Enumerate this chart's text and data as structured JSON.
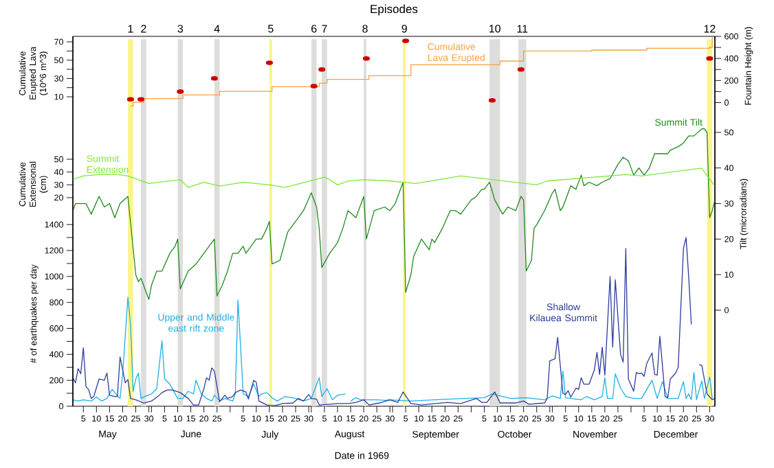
{
  "chart_data": [
    {
      "type": "line",
      "title": "Episodes",
      "xlabel": "Date in 1969",
      "ylabel": "# of earthquakes per day",
      "y2label": "Tilt (microradians)",
      "y3label": "Cumulative Extensional (cm)",
      "xlim": [
        "1969-05-01",
        "1970-01-01"
      ],
      "xticks": [
        {
          "value": "1969-05-05",
          "label": "5"
        },
        {
          "value": "1969-05-10",
          "label": "10"
        },
        {
          "value": "1969-05-15",
          "label": "15"
        },
        {
          "value": "1969-05-20",
          "label": "20"
        },
        {
          "value": "1969-05-25",
          "label": "25"
        },
        {
          "value": "1969-05-30",
          "label": "30"
        },
        {
          "value": "1969-05-31",
          "label": null
        },
        {
          "value": "1969-06-05",
          "label": "5"
        },
        {
          "value": "1969-06-10",
          "label": "10"
        },
        {
          "value": "1969-06-15",
          "label": "15"
        },
        {
          "value": "1969-06-20",
          "label": "20"
        },
        {
          "value": "1969-06-25",
          "label": "25"
        },
        {
          "value": "1969-06-30",
          "label": null
        },
        {
          "value": "1969-07-05",
          "label": "5"
        },
        {
          "value": "1969-07-10",
          "label": "10"
        },
        {
          "value": "1969-07-15",
          "label": "15"
        },
        {
          "value": "1969-07-20",
          "label": "20"
        },
        {
          "value": "1969-07-25",
          "label": "25"
        },
        {
          "value": "1969-07-30",
          "label": "30"
        },
        {
          "value": "1969-07-31",
          "label": null
        },
        {
          "value": "1969-08-05",
          "label": "5"
        },
        {
          "value": "1969-08-10",
          "label": "10"
        },
        {
          "value": "1969-08-15",
          "label": "15"
        },
        {
          "value": "1969-08-20",
          "label": "20"
        },
        {
          "value": "1969-08-25",
          "label": "25"
        },
        {
          "value": "1969-08-30",
          "label": "30"
        },
        {
          "value": "1969-08-31",
          "label": null
        },
        {
          "value": "1969-09-05",
          "label": "5"
        },
        {
          "value": "1969-09-10",
          "label": "10"
        },
        {
          "value": "1969-09-15",
          "label": "15"
        },
        {
          "value": "1969-09-20",
          "label": "20"
        },
        {
          "value": "1969-09-25",
          "label": "25"
        },
        {
          "value": "1969-09-30",
          "label": null
        },
        {
          "value": "1969-10-05",
          "label": "5"
        },
        {
          "value": "1969-10-10",
          "label": "10"
        },
        {
          "value": "1969-10-15",
          "label": "15"
        },
        {
          "value": "1969-10-20",
          "label": "20"
        },
        {
          "value": "1969-10-25",
          "label": "25"
        },
        {
          "value": "1969-10-30",
          "label": "30"
        },
        {
          "value": "1969-10-31",
          "label": null
        },
        {
          "value": "1969-11-05",
          "label": "5"
        },
        {
          "value": "1969-11-10",
          "label": "10"
        },
        {
          "value": "1969-11-15",
          "label": "15"
        },
        {
          "value": "1969-11-20",
          "label": "20"
        },
        {
          "value": "1969-11-25",
          "label": "25"
        },
        {
          "value": "1969-11-30",
          "label": null
        },
        {
          "value": "1969-12-05",
          "label": "5"
        },
        {
          "value": "1969-12-10",
          "label": "10"
        },
        {
          "value": "1969-12-15",
          "label": "15"
        },
        {
          "value": "1969-12-20",
          "label": "20"
        },
        {
          "value": "1969-12-25",
          "label": "25"
        },
        {
          "value": "1969-12-30",
          "label": "30"
        }
      ],
      "ylim": [
        0,
        2850
      ],
      "yticks": [
        0,
        {
          "value": 100,
          "label": null
        },
        200,
        {
          "value": 300,
          "label": null
        },
        400,
        {
          "value": 500,
          "label": null
        },
        600,
        {
          "value": 700,
          "label": null
        },
        800,
        {
          "value": 900,
          "label": null
        },
        1000,
        {
          "value": 1100,
          "label": null
        },
        1200,
        {
          "value": 1300,
          "label": null
        },
        1400
      ],
      "y2lim": [
        -27,
        77
      ],
      "y2ticks": [
        0,
        10,
        20,
        30,
        40,
        50
      ],
      "y3lim": [
        -143,
        146
      ],
      "y3ticks": [
        20,
        30,
        40,
        50
      ],
      "bands": [
        {
          "axis": "x",
          "from": "1969-05-22",
          "to": "1969-05-24",
          "label": "1",
          "color": "#fbf48c"
        },
        {
          "axis": "x",
          "from": "1969-05-27",
          "to": "1969-05-29",
          "label": "2",
          "color": "#dddddb"
        },
        {
          "axis": "x",
          "from": "1969-06-10",
          "to": "1969-06-12",
          "label": "3",
          "color": "#dddddb"
        },
        {
          "axis": "x",
          "from": "1969-06-24",
          "to": "1969-06-26",
          "label": "4",
          "color": "#dddddb"
        },
        {
          "axis": "x",
          "from": "1969-07-15",
          "to": "1969-07-16",
          "label": "5",
          "color": "#fbf48c"
        },
        {
          "axis": "x",
          "from": "1969-07-31",
          "to": "1969-08-02",
          "label": "6",
          "color": "#dddddb"
        },
        {
          "axis": "x",
          "from": "1969-08-04",
          "to": "1969-08-06",
          "label": "7",
          "color": "#dddddb"
        },
        {
          "axis": "x",
          "from": "1969-08-20",
          "to": "1969-08-21",
          "label": "8",
          "color": "#dddddb"
        },
        {
          "axis": "x",
          "from": "1969-09-04",
          "to": "1969-09-05",
          "label": "9",
          "color": "#fbf48c"
        },
        {
          "axis": "x",
          "from": "1969-10-07",
          "to": "1969-10-11",
          "label": "10",
          "color": "#dddddb"
        },
        {
          "axis": "x",
          "from": "1969-10-18",
          "to": "1969-10-21",
          "label": "11",
          "color": "#dddddb"
        },
        {
          "axis": "x",
          "from": "1969-12-29",
          "to": "1969-12-31",
          "label": "12",
          "color": "#fbf48c"
        }
      ],
      "annotations": [
        "May",
        "June",
        "July",
        "August",
        "September",
        "October",
        "November",
        "December"
      ],
      "series": [
        {
          "name": "Upper and Middle east rift zone",
          "color": "#1db0e8",
          "x": [
            "1969-05-01",
            "1969-05-03",
            "1969-05-05",
            "1969-05-08",
            "1969-05-10",
            "1969-05-12",
            "1969-05-14",
            "1969-05-16",
            "1969-05-18",
            "1969-05-19",
            "1969-05-20",
            "1969-05-22",
            "1969-05-23",
            "1969-05-24",
            "1969-05-25",
            "1969-05-26",
            "1969-05-27",
            "1969-05-29",
            "1969-05-31",
            "1969-06-02",
            "1969-06-04",
            "1969-06-05",
            "1969-06-07",
            "1969-06-10",
            "1969-06-12",
            "1969-06-14",
            "1969-06-16",
            "1969-06-17",
            "1969-06-19",
            "1969-06-21",
            "1969-06-23",
            "1969-06-24",
            "1969-06-26",
            "1969-06-28",
            "1969-07-01",
            "1969-07-02",
            "1969-07-03",
            "1969-07-05",
            "1969-07-07",
            "1969-07-09",
            "1969-07-11",
            "1969-07-12",
            "1969-07-14",
            "1969-07-16",
            "1969-07-18",
            "1969-07-21",
            "1969-07-25",
            "1969-07-28",
            "1969-07-31",
            "1969-08-01",
            "1969-08-03",
            "1969-08-04",
            "1969-08-06",
            "1969-08-08",
            "1969-08-10",
            "1969-08-13",
            "1969-08-14",
            "1969-08-15",
            "1969-08-17",
            "1969-08-19",
            "1969-08-23",
            "1969-08-25",
            "1969-08-28",
            "1969-08-30",
            "1969-09-07",
            "1969-09-16",
            "1969-09-27",
            "1969-10-05",
            "1969-10-08",
            "1969-10-15",
            "1969-10-21",
            "1969-10-28",
            "1969-10-31",
            "1969-11-03",
            "1969-11-04",
            "1969-11-05",
            "1969-11-11",
            "1969-11-13",
            "1969-11-16",
            "1969-11-19",
            "1969-11-20",
            "1969-11-21",
            "1969-11-23",
            "1969-11-24",
            "1969-11-26",
            "1969-11-28",
            "1969-12-01",
            "1969-12-04",
            "1969-12-08",
            "1969-12-10",
            "1969-12-12",
            "1969-12-14",
            "1969-12-18",
            "1969-12-20",
            "1969-12-21",
            "1969-12-22",
            "1969-12-23",
            "1969-12-24",
            "1969-12-25",
            "1969-12-27",
            "1969-12-28",
            "1969-12-30",
            "1969-12-31"
          ],
          "values": [
            50,
            40,
            50,
            40,
            70,
            40,
            60,
            130,
            80,
            60,
            250,
            840,
            630,
            115,
            210,
            255,
            60,
            80,
            95,
            135,
            505,
            210,
            170,
            60,
            60,
            115,
            95,
            200,
            95,
            60,
            40,
            85,
            40,
            60,
            40,
            95,
            820,
            95,
            75,
            170,
            75,
            95,
            105,
            65,
            40,
            75,
            60,
            40,
            60,
            115,
            220,
            75,
            135,
            50,
            85,
            95,
            null,
            40,
            65,
            50,
            50,
            50,
            45,
            50,
            40,
            50,
            60,
            65,
            95,
            60,
            65,
            50,
            80,
            60,
            270,
            65,
            50,
            75,
            50,
            75,
            220,
            60,
            60,
            250,
            140,
            75,
            60,
            60,
            200,
            60,
            190,
            60,
            60,
            190,
            60,
            95,
            50,
            260,
            50,
            195,
            60,
            225,
            60
          ]
        },
        {
          "name": "Shallow Kilauea Summit",
          "color": "#2d3c9e",
          "x": [
            "1969-05-01",
            "1969-05-02",
            "1969-05-03",
            "1969-05-04",
            "1969-05-05",
            "1969-05-06",
            "1969-05-07",
            "1969-05-08",
            "1969-05-09",
            "1969-05-11",
            "1969-05-13",
            "1969-05-14",
            "1969-05-15",
            "1969-05-17",
            "1969-05-18",
            "1969-05-19",
            "1969-05-21",
            "1969-05-22",
            "1969-05-23",
            "1969-05-25",
            "1969-05-28",
            "1969-05-31",
            "1969-06-03",
            "1969-06-04",
            "1969-06-06",
            "1969-06-08",
            "1969-06-11",
            "1969-06-14",
            "1969-06-16",
            "1969-06-18",
            "1969-06-20",
            "1969-06-21",
            "1969-06-22",
            "1969-06-23",
            "1969-06-24",
            "1969-06-26",
            "1969-06-28",
            "1969-06-29",
            "1969-07-01",
            "1969-07-02",
            "1969-07-04",
            "1969-07-06",
            "1969-07-07",
            "1969-07-09",
            "1969-07-10",
            "1969-07-11",
            "1969-07-14",
            "1969-07-17",
            "1969-07-20",
            "1969-07-24",
            "1969-07-26",
            "1969-07-28",
            "1969-07-30",
            "1969-07-31",
            "1969-08-02",
            "1969-08-03",
            "1969-08-07",
            "1969-08-10",
            "1969-08-14",
            "1969-08-17",
            "1969-08-20",
            "1969-08-22",
            "1969-08-26",
            "1969-08-30",
            "1969-09-02",
            "1969-09-04",
            "1969-09-07",
            "1969-09-11",
            "1969-09-21",
            "1969-09-26",
            "1969-10-02",
            "1969-10-04",
            "1969-10-06",
            "1969-10-09",
            "1969-10-11",
            "1969-10-17",
            "1969-10-20",
            "1969-10-22",
            "1969-10-28",
            "1969-10-29",
            "1969-10-30",
            "1969-11-01",
            "1969-11-02",
            "1969-11-04",
            "1969-11-05",
            "1969-11-06",
            "1969-11-07",
            "1969-11-09",
            "1969-11-10",
            "1969-11-11",
            "1969-11-12",
            "1969-11-14",
            "1969-11-16",
            "1969-11-17",
            "1969-11-18",
            "1969-11-19",
            "1969-11-20",
            "1969-11-22",
            "1969-11-23",
            "1969-11-24",
            "1969-11-26",
            "1969-11-27",
            "1969-11-28",
            "1969-11-29",
            "1969-12-01",
            "1969-12-02",
            "1969-12-03",
            "1969-12-04",
            "1969-12-05",
            "1969-12-06",
            "1969-12-08",
            "1969-12-09",
            "1969-12-10",
            "1969-12-11",
            "1969-12-13",
            "1969-12-14",
            "1969-12-15",
            "1969-12-17",
            "1969-12-18",
            "1969-12-20",
            "1969-12-21",
            "1969-12-22",
            "1969-12-23",
            "1969-12-24",
            "1969-12-26",
            "1969-12-27",
            "1969-12-29",
            "1969-12-31",
            "1970-01-01"
          ],
          "values": [
            220,
            180,
            290,
            250,
            450,
            150,
            130,
            60,
            75,
            210,
            200,
            255,
            85,
            75,
            75,
            380,
            180,
            205,
            60,
            50,
            25,
            40,
            85,
            105,
            125,
            125,
            105,
            60,
            10,
            10,
            135,
            220,
            200,
            295,
            270,
            35,
            85,
            60,
            75,
            105,
            125,
            110,
            55,
            200,
            185,
            40,
            10,
            5,
            20,
            25,
            60,
            40,
            90,
            60,
            55,
            10,
            15,
            20,
            20,
            30,
            50,
            10,
            25,
            50,
            30,
            110,
            20,
            10,
            30,
            20,
            60,
            30,
            30,
            110,
            25,
            25,
            40,
            15,
            25,
            60,
            350,
            365,
            530,
            100,
            90,
            120,
            70,
            140,
            130,
            220,
            170,
            170,
            280,
            415,
            245,
            455,
            240,
            1000,
            455,
            975,
            400,
            340,
            1215,
            210,
            115,
            260,
            250,
            255,
            230,
            330,
            410,
            245,
            240,
            540,
            75,
            65,
            210,
            255,
            300,
            1215,
            1300,
            1000,
            630,
            null,
            320,
            315,
            95,
            50,
            60
          ]
        },
        {
          "name": "Summit Tilt",
          "axis": "y2",
          "color": "#1f8a1f",
          "x": [
            "1969-05-01",
            "1969-05-02",
            "1969-05-04",
            "1969-05-06",
            "1969-05-08",
            "1969-05-11",
            "1969-05-13",
            "1969-05-15",
            "1969-05-17",
            "1969-05-19",
            "1969-05-22",
            "1969-05-25",
            "1969-05-26",
            "1969-05-27",
            "1969-05-30",
            "1969-05-31",
            "1969-06-02",
            "1969-06-04",
            "1969-06-07",
            "1969-06-09",
            "1969-06-10",
            "1969-06-11",
            "1969-06-14",
            "1969-06-17",
            "1969-06-20",
            "1969-06-24",
            "1969-06-25",
            "1969-06-27",
            "1969-06-29",
            "1969-07-01",
            "1969-07-03",
            "1969-07-05",
            "1969-07-06",
            "1969-07-10",
            "1969-07-12",
            "1969-07-14",
            "1969-07-15",
            "1969-07-16",
            "1969-07-19",
            "1969-07-22",
            "1969-07-24",
            "1969-07-26",
            "1969-07-28",
            "1969-07-31",
            "1969-08-02",
            "1969-08-03",
            "1969-08-04",
            "1969-08-07",
            "1969-08-10",
            "1969-08-12",
            "1969-08-14",
            "1969-08-17",
            "1969-08-20",
            "1969-08-21",
            "1969-08-24",
            "1969-08-28",
            "1969-08-30",
            "1969-09-01",
            "1969-09-02",
            "1969-09-04",
            "1969-09-05",
            "1969-09-07",
            "1969-09-08",
            "1969-09-11",
            "1969-09-14",
            "1969-09-15",
            "1969-09-16",
            "1969-09-19",
            "1969-09-22",
            "1969-09-24",
            "1969-09-26",
            "1969-09-30",
            "1969-10-02",
            "1969-10-04",
            "1969-10-05",
            "1969-10-07",
            "1969-10-09",
            "1969-10-12",
            "1969-10-14",
            "1969-10-17",
            "1969-10-19",
            "1969-10-20",
            "1969-10-21",
            "1969-10-23",
            "1969-10-24",
            "1969-10-25",
            "1969-10-28",
            "1969-10-31",
            "1969-11-01",
            "1969-11-03",
            "1969-11-04",
            "1969-11-07",
            "1969-11-09",
            "1969-11-11",
            "1969-11-12",
            "1969-11-14",
            "1969-11-17",
            "1969-11-19",
            "1969-11-22",
            "1969-11-25",
            "1969-11-27",
            "1969-11-29",
            "1969-12-01",
            "1969-12-03",
            "1969-12-05",
            "1969-12-07",
            "1969-12-09",
            "1969-12-11",
            "1969-12-14",
            "1969-12-15",
            "1969-12-18",
            "1969-12-20",
            "1969-12-22",
            "1969-12-24",
            "1969-12-27",
            "1969-12-28",
            "1969-12-29",
            "1969-12-30",
            "1969-12-31",
            "1970-01-01"
          ],
          "values": [
            28,
            30,
            30,
            30,
            27,
            32,
            29,
            30,
            26,
            30,
            32,
            10,
            8,
            9,
            3,
            7,
            11,
            11,
            16,
            18,
            20,
            6,
            11,
            13,
            16,
            20,
            4,
            7,
            11,
            16,
            16,
            18,
            16,
            20,
            20,
            23,
            25,
            13,
            14,
            22,
            24,
            26,
            28,
            33,
            29,
            23,
            12,
            16,
            19,
            23,
            28,
            26,
            32,
            20,
            28,
            29,
            28,
            30,
            32,
            36,
            5,
            10,
            15,
            20,
            17,
            20,
            19,
            23,
            28,
            28,
            27,
            31,
            32,
            34,
            34,
            36,
            31,
            27,
            29,
            28,
            32,
            31,
            11,
            14,
            23,
            24,
            28,
            33,
            34,
            28,
            29,
            35,
            34,
            38,
            35,
            36,
            35,
            36,
            37,
            41,
            43,
            42,
            38,
            40,
            38,
            40,
            44,
            44,
            44,
            45,
            46,
            47,
            49,
            49,
            51,
            51,
            50,
            26,
            28,
            31
          ]
        },
        {
          "name": "Summit Extension",
          "axis": "y3",
          "color": "#7de838",
          "x": [
            "1969-05-01",
            "1969-05-02",
            "1969-05-05",
            "1969-05-11",
            "1969-05-18",
            "1969-05-22",
            "1969-05-30",
            "1969-06-11",
            "1969-06-14",
            "1969-06-20",
            "1969-06-26",
            "1969-07-05",
            "1969-07-15",
            "1969-07-21",
            "1969-08-05",
            "1969-08-07",
            "1969-08-10",
            "1969-08-14",
            "1969-08-20",
            "1969-08-30",
            "1969-09-09",
            "1969-09-26",
            "1969-10-25",
            "1969-10-29",
            "1969-11-28",
            "1969-12-04",
            "1969-12-27",
            "1969-12-28",
            "1970-01-01"
          ],
          "values": [
            34,
            35,
            37,
            38,
            38,
            37,
            31,
            34,
            28,
            32,
            29,
            32,
            30,
            28,
            36,
            34,
            30,
            33,
            34,
            33,
            31,
            37,
            30,
            33,
            38,
            37,
            43,
            40,
            29
          ]
        }
      ]
    },
    {
      "type": "step",
      "tick_labels": "y",
      "ylabel": "Cumulative Erupted Lava (10^6 m^3)",
      "y2label": "Fountain Height (m)",
      "xlim": [
        "1969-05-01",
        "1970-01-01"
      ],
      "ylim": [
        -328,
        76
      ],
      "yticks": [
        10,
        {
          "value": 20,
          "label": null
        },
        30,
        {
          "value": 40,
          "label": null
        },
        50,
        {
          "value": 60,
          "label": null
        },
        70
      ],
      "y2lim": [
        -2750,
        600
      ],
      "y2ticks": [
        0,
        {
          "value": 100,
          "label": null
        },
        200,
        {
          "value": 300,
          "label": null
        },
        400,
        {
          "value": 500,
          "label": null
        },
        600
      ],
      "series": [
        {
          "name": "Cumulative Lava Erupted",
          "color": "#f9a03f",
          "x": [
            "1969-05-23",
            "1969-05-24",
            "1969-05-28",
            "1969-06-12",
            "1969-06-26",
            "1969-07-16",
            "1969-08-03",
            "1969-08-06",
            "1969-08-22",
            "1969-09-07",
            "1969-10-11",
            "1969-10-20",
            "1969-11-15",
            "1969-12-06",
            "1969-12-30",
            "1969-12-31"
          ],
          "values": [
            0,
            4,
            8,
            12,
            16,
            21,
            25,
            29,
            33,
            45,
            49,
            60,
            61,
            63,
            64,
            75
          ]
        },
        {
          "type": "scatter",
          "axis": "y2",
          "marker": "circle",
          "color": "#cc0000",
          "x": [
            "1969-05-23",
            "1969-05-27",
            "1969-06-11",
            "1969-06-24",
            "1969-07-15",
            "1969-08-01",
            "1969-08-04",
            "1969-08-21",
            "1969-09-05",
            "1969-10-08",
            "1969-10-19",
            "1969-12-30"
          ],
          "values": [
            30,
            30,
            100,
            220,
            360,
            150,
            300,
            400,
            560,
            20,
            300,
            400
          ]
        }
      ]
    }
  ]
}
